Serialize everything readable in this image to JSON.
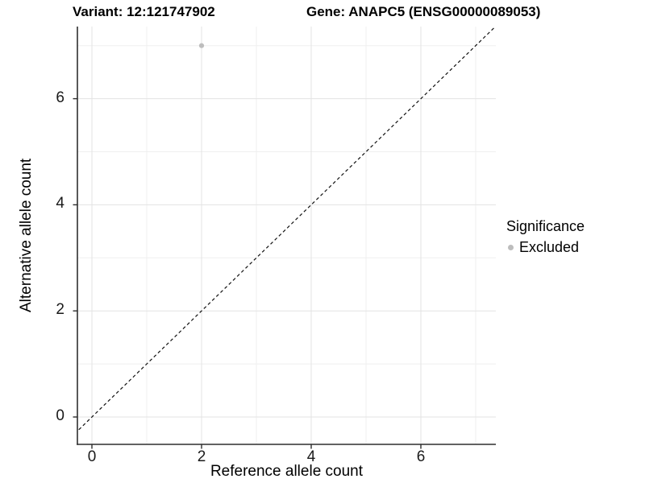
{
  "chart_data": {
    "type": "scatter",
    "title_left": "Variant: 12:121747902",
    "title_right": "Gene: ANAPC5 (ENSG00000089053)",
    "xlabel": "Reference allele count",
    "ylabel": "Alternative allele count",
    "xlim": [
      -0.27,
      7.37
    ],
    "ylim": [
      -0.52,
      7.36
    ],
    "x_major_ticks": [
      0,
      2,
      4,
      6
    ],
    "y_major_ticks": [
      0,
      2,
      4,
      6
    ],
    "x_minor_gridlines": [
      1,
      3,
      5,
      7
    ],
    "y_minor_gridlines": [
      1,
      3,
      5,
      7
    ],
    "grid": "major+minor",
    "series": [
      {
        "name": "Excluded",
        "color": "#bdbdbd",
        "points": [
          {
            "x": 2,
            "y": 7
          }
        ]
      }
    ],
    "reference_line": {
      "slope": 1,
      "intercept": 0,
      "linetype": "dashed",
      "color": "#111111"
    },
    "legend": {
      "title": "Significance",
      "position": "right",
      "entries": [
        {
          "label": "Excluded",
          "color": "#bdbdbd"
        }
      ]
    },
    "colors": {
      "background": "#ffffff",
      "grid_major": "#e3e3e3",
      "grid_minor": "#efefef",
      "axis_line": "#2e2e2e",
      "tick_text": "#1a1a1a",
      "title_text": "#000000"
    }
  }
}
